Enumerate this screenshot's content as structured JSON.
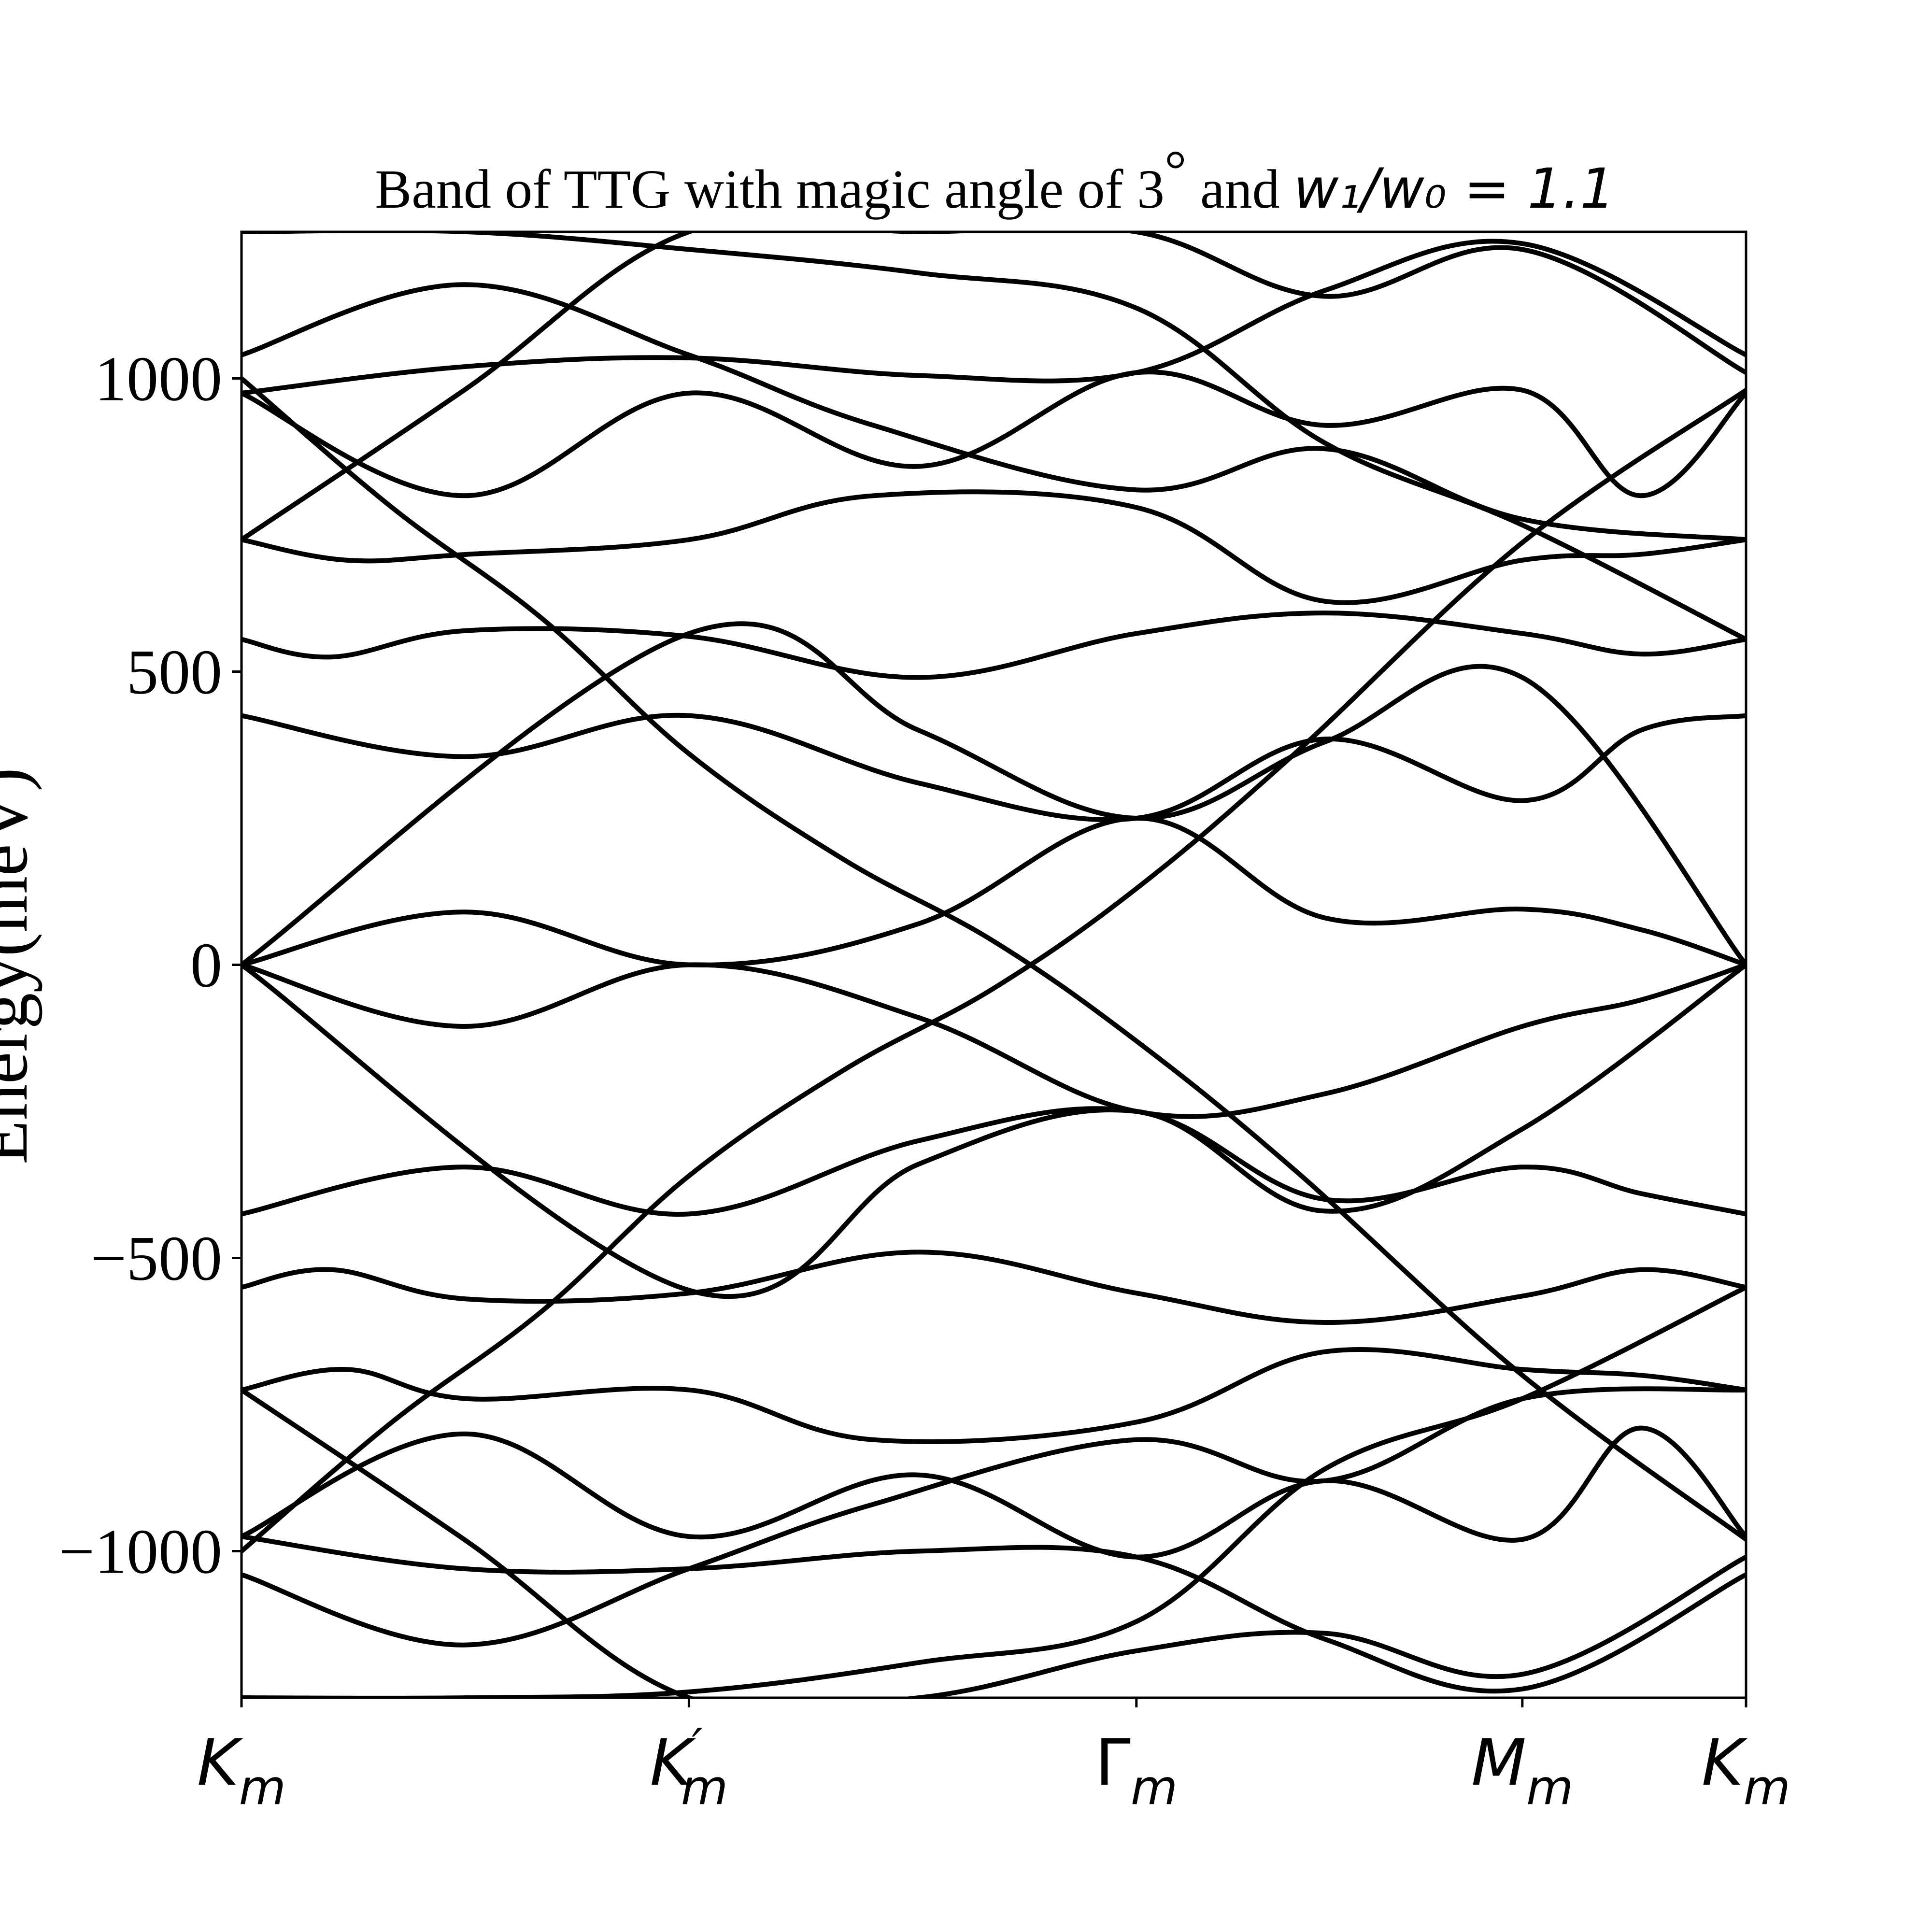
{
  "chart_data": {
    "type": "line",
    "title": {
      "prefix": "Band of TTG with magic angle of 3",
      "degree": "°",
      "middle": " and ",
      "math": "w₁/w₀ = 1.1"
    },
    "xlabel": "",
    "ylabel": "Energy(meV)",
    "ylim": [
      -1250,
      1250
    ],
    "xlim": [
      0,
      1
    ],
    "grid": false,
    "legend": "none",
    "line_color": "#000000",
    "y_ticks": [
      {
        "value": -1000,
        "label": "−1000"
      },
      {
        "value": -500,
        "label": "−500"
      },
      {
        "value": 0,
        "label": "0"
      },
      {
        "value": 500,
        "label": "500"
      },
      {
        "value": 1000,
        "label": "1000"
      }
    ],
    "x_ticks": [
      {
        "value": 0.0,
        "base": "K",
        "sub": "m",
        "prime": ""
      },
      {
        "value": 0.2974,
        "base": "K",
        "sub": "m",
        "prime": "′"
      },
      {
        "value": 0.5948,
        "base": "Γ",
        "sub": "m",
        "prime": ""
      },
      {
        "value": 0.8513,
        "base": "M",
        "sub": "m",
        "prime": ""
      },
      {
        "value": 1.0,
        "base": "K",
        "sub": "m",
        "prime": ""
      }
    ],
    "series": [
      {
        "x": [
          0.0,
          0.148,
          0.2974,
          0.45,
          0.5948,
          0.72,
          0.8513,
          0.93,
          1.0
        ],
        "y": [
          0,
          90,
          0,
          70,
          250,
          80,
          95,
          60,
          0
        ]
      },
      {
        "x": [
          0.0,
          0.148,
          0.2974,
          0.45,
          0.5948,
          0.72,
          0.8513,
          0.93,
          1.0
        ],
        "y": [
          0,
          -105,
          0,
          -90,
          -250,
          -220,
          -105,
          -60,
          0
        ]
      },
      {
        "x": [
          0.0,
          0.2974,
          0.45,
          0.5948,
          0.72,
          0.8513,
          1.0
        ],
        "y": [
          0,
          565,
          400,
          250,
          380,
          490,
          0
        ]
      },
      {
        "x": [
          0.0,
          0.2974,
          0.45,
          0.5948,
          0.72,
          0.8513,
          1.0
        ],
        "y": [
          0,
          -555,
          -340,
          -250,
          -420,
          -280,
          0
        ]
      },
      {
        "x": [
          0.0,
          0.148,
          0.2974,
          0.45,
          0.5948,
          0.72,
          0.8513,
          0.93,
          1.0
        ],
        "y": [
          425,
          355,
          425,
          310,
          250,
          385,
          280,
          400,
          425
        ]
      },
      {
        "x": [
          0.0,
          0.148,
          0.2974,
          0.45,
          0.5948,
          0.72,
          0.8513,
          0.93,
          1.0
        ],
        "y": [
          -425,
          -345,
          -425,
          -300,
          -250,
          -400,
          -345,
          -390,
          -425
        ]
      },
      {
        "x": [
          0.0,
          0.06,
          0.15,
          0.2974,
          0.45,
          0.5948,
          0.72,
          0.8513,
          0.93,
          1.0
        ],
        "y": [
          555,
          525,
          570,
          560,
          490,
          565,
          600,
          565,
          530,
          555
        ]
      },
      {
        "x": [
          0.0,
          0.06,
          0.15,
          0.2974,
          0.45,
          0.5948,
          0.72,
          0.8513,
          0.93,
          1.0
        ],
        "y": [
          -550,
          -520,
          -570,
          -560,
          -490,
          -560,
          -610,
          -565,
          -520,
          -550
        ]
      },
      {
        "x": [
          0.0,
          0.07,
          0.15,
          0.2974,
          0.42,
          0.5948,
          0.72,
          0.8513,
          0.93,
          1.0
        ],
        "y": [
          725,
          690,
          700,
          725,
          800,
          780,
          620,
          690,
          700,
          725
        ]
      },
      {
        "x": [
          0.0,
          0.07,
          0.15,
          0.2974,
          0.42,
          0.5948,
          0.72,
          0.8513,
          0.93,
          1.0
        ],
        "y": [
          -725,
          -690,
          -740,
          -725,
          -810,
          -780,
          -660,
          -690,
          -700,
          -725
        ]
      },
      {
        "x": [
          0.0,
          0.148,
          0.2974,
          0.45,
          0.5948,
          0.72,
          0.8513,
          0.93,
          1.0
        ],
        "y": [
          975,
          800,
          975,
          850,
          1010,
          920,
          980,
          800,
          975
        ]
      },
      {
        "x": [
          0.0,
          0.148,
          0.2974,
          0.45,
          0.5948,
          0.72,
          0.8513,
          0.93,
          1.0
        ],
        "y": [
          -975,
          -800,
          -975,
          -870,
          -1010,
          -880,
          -980,
          -790,
          -975
        ]
      },
      {
        "x": [
          0.0,
          0.148,
          0.2974,
          0.45,
          0.5948,
          0.72,
          0.8513,
          1.0
        ],
        "y": [
          975,
          1020,
          1035,
          1005,
          1010,
          1150,
          1230,
          1040
        ]
      },
      {
        "x": [
          0.0,
          0.148,
          0.2974,
          0.45,
          0.5948,
          0.72,
          0.8513,
          1.0
        ],
        "y": [
          -975,
          -1030,
          -1030,
          -1000,
          -1010,
          -1150,
          -1235,
          -1040
        ]
      },
      {
        "x": [
          0.0,
          0.148,
          0.2974,
          0.42,
          0.5948,
          0.72,
          0.8513,
          1.0
        ],
        "y": [
          1040,
          1160,
          1040,
          920,
          810,
          880,
          760,
          725
        ]
      },
      {
        "x": [
          0.0,
          0.148,
          0.2974,
          0.42,
          0.5948,
          0.72,
          0.8513,
          1.0
        ],
        "y": [
          -1040,
          -1160,
          -1030,
          -920,
          -810,
          -880,
          -740,
          -725
        ]
      },
      {
        "x": [
          0.0,
          0.15,
          0.2974,
          0.45,
          0.5948,
          0.72,
          0.8513,
          1.0
        ],
        "y": [
          1250,
          1250,
          1220,
          1180,
          1120,
          890,
          750,
          555
        ]
      },
      {
        "x": [
          0.0,
          0.15,
          0.2974,
          0.45,
          0.5948,
          0.72,
          0.8513,
          1.0
        ],
        "y": [
          -1250,
          -1250,
          -1240,
          -1190,
          -1120,
          -860,
          -740,
          -550
        ]
      },
      {
        "x": [
          0.0,
          0.148,
          0.2974,
          0.45,
          0.5948,
          0.72,
          0.8513,
          1.0
        ],
        "y": [
          725,
          980,
          1250,
          1250,
          1250,
          1140,
          1220,
          1010
        ]
      },
      {
        "x": [
          0.0,
          0.148,
          0.2974,
          0.45,
          0.5948,
          0.72,
          0.8513,
          1.0
        ],
        "y": [
          -725,
          -980,
          -1250,
          -1250,
          -1170,
          -1140,
          -1210,
          -1010
        ]
      },
      {
        "x": [
          0.0,
          0.1,
          0.2,
          0.2974,
          0.4,
          0.5,
          0.5948,
          0.7,
          0.8513,
          1.0
        ],
        "y": [
          1000,
          780,
          590,
          360,
          180,
          40,
          -130,
          -350,
          -700,
          -980
        ]
      },
      {
        "x": [
          0.0,
          0.1,
          0.2,
          0.2974,
          0.4,
          0.5,
          0.5948,
          0.7,
          0.8513,
          1.0
        ],
        "y": [
          -1000,
          -780,
          -590,
          -360,
          -180,
          -40,
          130,
          360,
          720,
          980
        ]
      }
    ]
  }
}
